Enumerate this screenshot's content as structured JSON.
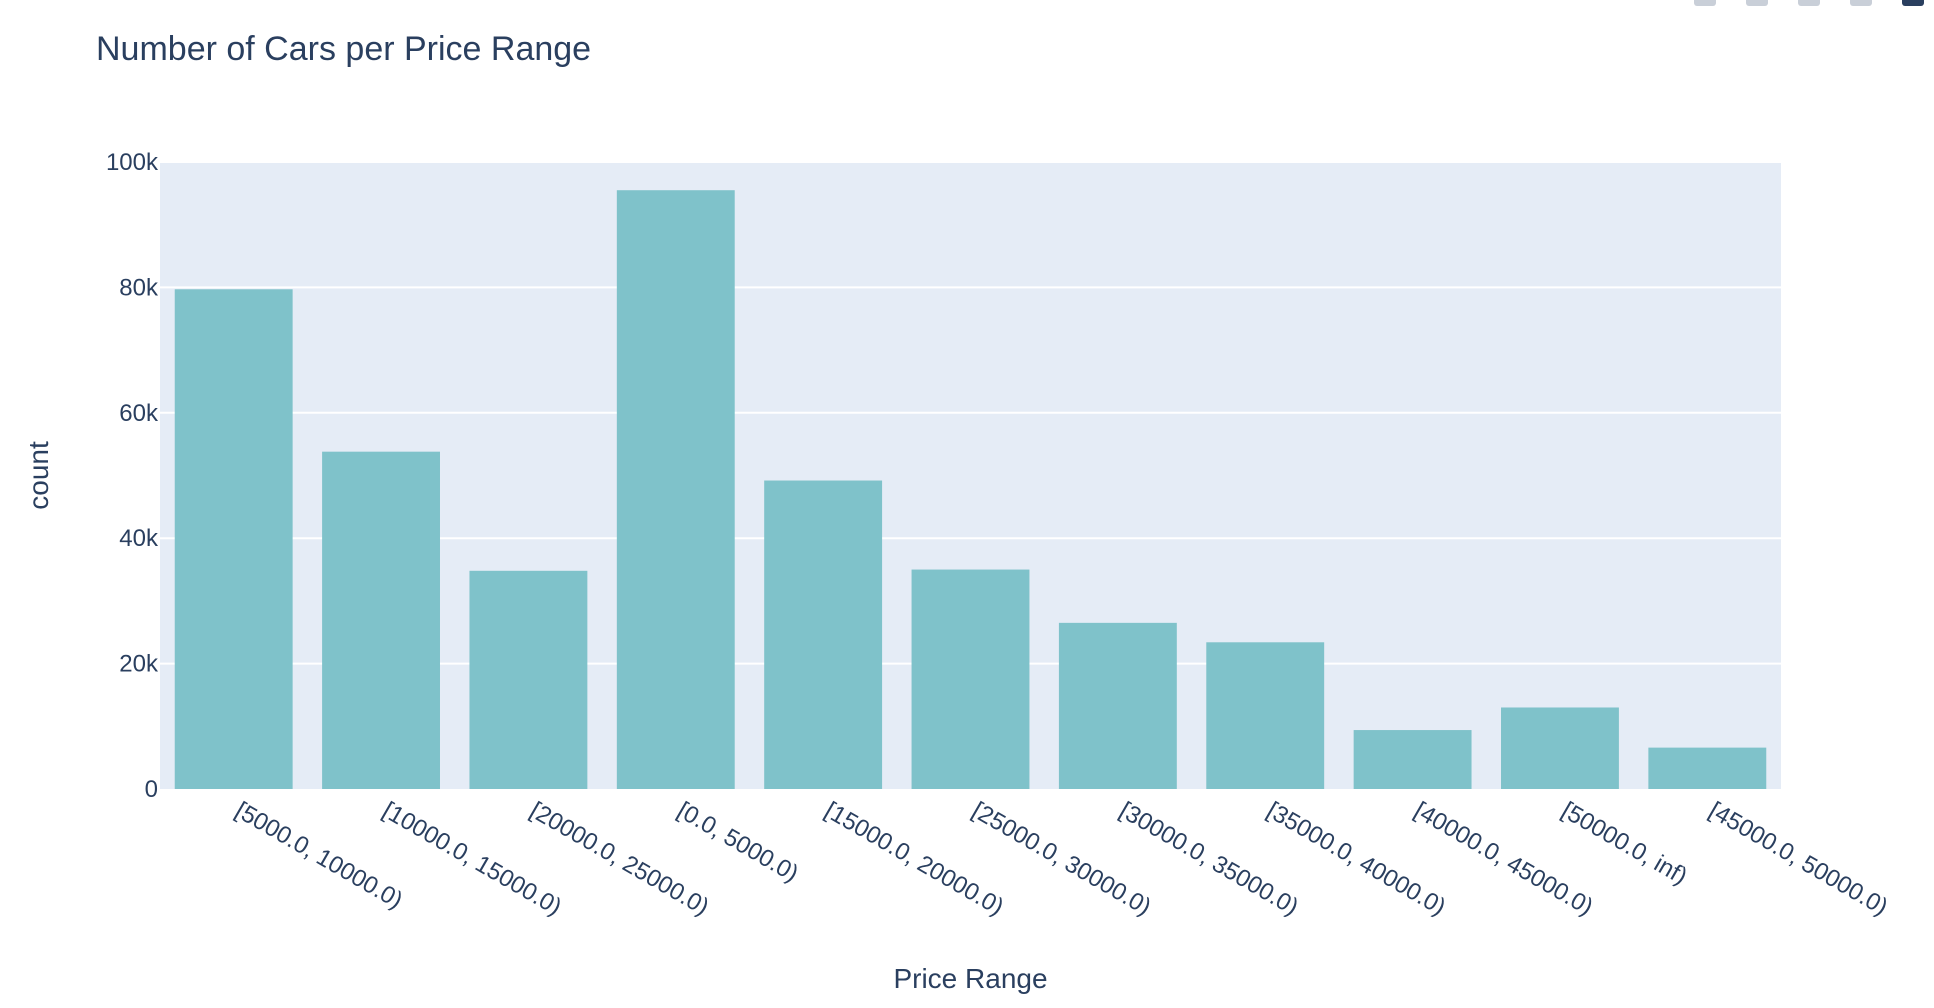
{
  "chart_data": {
    "type": "bar",
    "title": "Number of Cars per Price Range",
    "xlabel": "Price Range",
    "ylabel": "count",
    "categories": [
      "[5000.0, 10000.0)",
      "[10000.0, 15000.0)",
      "[20000.0, 25000.0)",
      "[0.0, 5000.0)",
      "[15000.0, 20000.0)",
      "[25000.0, 30000.0)",
      "[30000.0, 35000.0)",
      "[35000.0, 40000.0)",
      "[40000.0, 45000.0)",
      "[50000.0, inf)",
      "[45000.0, 50000.0)"
    ],
    "values": [
      79700,
      53800,
      34800,
      95500,
      49200,
      35000,
      26500,
      23400,
      9400,
      13000,
      6600
    ],
    "ylim": [
      0,
      100000
    ],
    "yticks": [
      0,
      20000,
      40000,
      60000,
      80000,
      100000
    ],
    "ytick_labels": [
      "0",
      "20k",
      "40k",
      "60k",
      "80k",
      "100k"
    ],
    "grid": true,
    "colors": {
      "bar": "#7fc2ca",
      "plot_bg": "#e5ecf6",
      "grid": "#ffffff",
      "text": "#2a3f5f"
    }
  }
}
